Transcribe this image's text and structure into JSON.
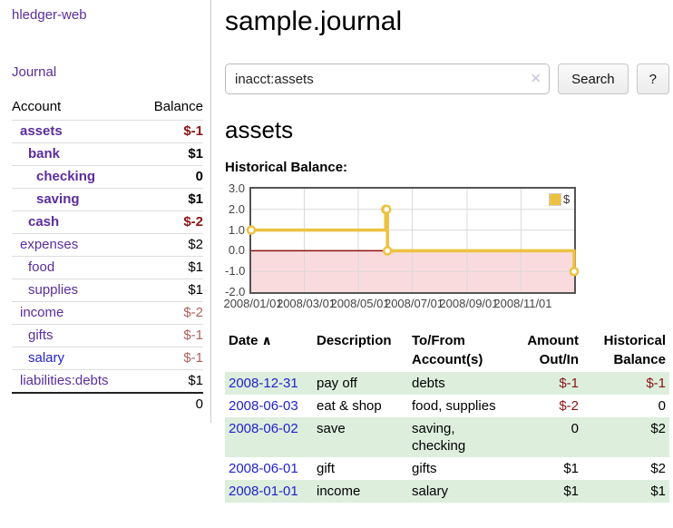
{
  "sidebar": {
    "app_title": "hledger-web",
    "journal_link": "Journal",
    "accounts_header": {
      "account": "Account",
      "balance": "Balance"
    },
    "accounts": [
      {
        "name": "assets",
        "indent": 1,
        "bold": true,
        "link_color": "purple",
        "balance": "$-1",
        "balance_class": "neg-strong"
      },
      {
        "name": "bank",
        "indent": 2,
        "bold": true,
        "link_color": "purple",
        "balance": "$1",
        "balance_class": "normal"
      },
      {
        "name": "checking",
        "indent": 3,
        "bold": true,
        "link_color": "purple",
        "balance": "0",
        "balance_class": "normal"
      },
      {
        "name": "saving",
        "indent": 3,
        "bold": true,
        "link_color": "purple",
        "balance": "$1",
        "balance_class": "normal"
      },
      {
        "name": "cash",
        "indent": 2,
        "bold": true,
        "link_color": "purple",
        "balance": "$-2",
        "balance_class": "neg-strong"
      },
      {
        "name": "expenses",
        "indent": 1,
        "bold": false,
        "link_color": "purple",
        "balance": "$2",
        "balance_class": "normal"
      },
      {
        "name": "food",
        "indent": 2,
        "bold": false,
        "link_color": "purple",
        "balance": "$1",
        "balance_class": "normal"
      },
      {
        "name": "supplies",
        "indent": 2,
        "bold": false,
        "link_color": "purple",
        "balance": "$1",
        "balance_class": "normal"
      },
      {
        "name": "income",
        "indent": 1,
        "bold": false,
        "link_color": "purple",
        "balance": "$-2",
        "balance_class": "neg-soft"
      },
      {
        "name": "gifts",
        "indent": 2,
        "bold": false,
        "link_color": "purple",
        "balance": "$-1",
        "balance_class": "neg-soft"
      },
      {
        "name": "salary",
        "indent": 2,
        "bold": false,
        "link_color": "blue",
        "balance": "$-1",
        "balance_class": "neg-soft"
      },
      {
        "name": "liabilities:debts",
        "indent": 1,
        "bold": false,
        "link_color": "purple",
        "balance": "$1",
        "balance_class": "normal"
      }
    ],
    "total": "0"
  },
  "main": {
    "title": "sample.journal",
    "search": {
      "value": "inacct:assets",
      "clear_icon": "✕",
      "button_label": "Search",
      "help_label": "?"
    },
    "account_heading": "assets",
    "chart_label": "Historical Balance:"
  },
  "chart_data": {
    "type": "line",
    "step": true,
    "series": [
      {
        "name": "$",
        "color": "#edc240",
        "points": [
          [
            "2008-01-01",
            1
          ],
          [
            "2008-06-01",
            2
          ],
          [
            "2008-06-02",
            2
          ],
          [
            "2008-06-03",
            0
          ],
          [
            "2008-12-31",
            -1
          ]
        ]
      }
    ],
    "x_range": [
      "2008-01-01",
      "2008-12-31"
    ],
    "y_range": [
      -2,
      3
    ],
    "y_ticks": [
      "3.0",
      "2.0",
      "1.0",
      "0.0",
      "-1.0",
      "-2.0"
    ],
    "x_ticks": [
      "2008/01/01",
      "2008/03/01",
      "2008/05/01",
      "2008/07/01",
      "2008/09/01",
      "2008/11/01"
    ],
    "negative_fill": "#fadbdd",
    "zero_line_color": "#8f1010",
    "grid_on": true,
    "legend_position": "top-right"
  },
  "transactions": {
    "sort_icon": "∧",
    "headers": [
      {
        "lines": [
          "Date"
        ],
        "align": "left",
        "sorted": true
      },
      {
        "lines": [
          "Description"
        ],
        "align": "left"
      },
      {
        "lines": [
          "To/From",
          "Account(s)"
        ],
        "align": "left"
      },
      {
        "lines": [
          "Amount",
          "Out/In"
        ],
        "align": "right"
      },
      {
        "lines": [
          "Historical",
          "Balance"
        ],
        "align": "right"
      }
    ],
    "rows": [
      {
        "date": "2008-12-31",
        "description": "pay off",
        "accounts": [
          "debts"
        ],
        "amount": "$-1",
        "amount_negative": true,
        "balance": "$-1",
        "balance_negative": true
      },
      {
        "date": "2008-06-03",
        "description": "eat & shop",
        "accounts": [
          "food, supplies"
        ],
        "amount": "$-2",
        "amount_negative": true,
        "balance": "0",
        "balance_negative": false
      },
      {
        "date": "2008-06-02",
        "description": "save",
        "accounts": [
          "saving,",
          "checking"
        ],
        "amount": "0",
        "amount_negative": false,
        "balance": "$2",
        "balance_negative": false
      },
      {
        "date": "2008-06-01",
        "description": "gift",
        "accounts": [
          "gifts"
        ],
        "amount": "$1",
        "amount_negative": false,
        "balance": "$2",
        "balance_negative": false
      },
      {
        "date": "2008-01-01",
        "description": "income",
        "accounts": [
          "salary"
        ],
        "amount": "$1",
        "amount_negative": false,
        "balance": "$1",
        "balance_negative": false
      }
    ]
  },
  "colors": {
    "link_purple": "#5b2d9e",
    "link_blue": "#2222cc",
    "negative_strong": "#8b1414",
    "negative_soft": "#b06060",
    "row_green": "#ddeedd",
    "chart_line": "#edc240"
  }
}
